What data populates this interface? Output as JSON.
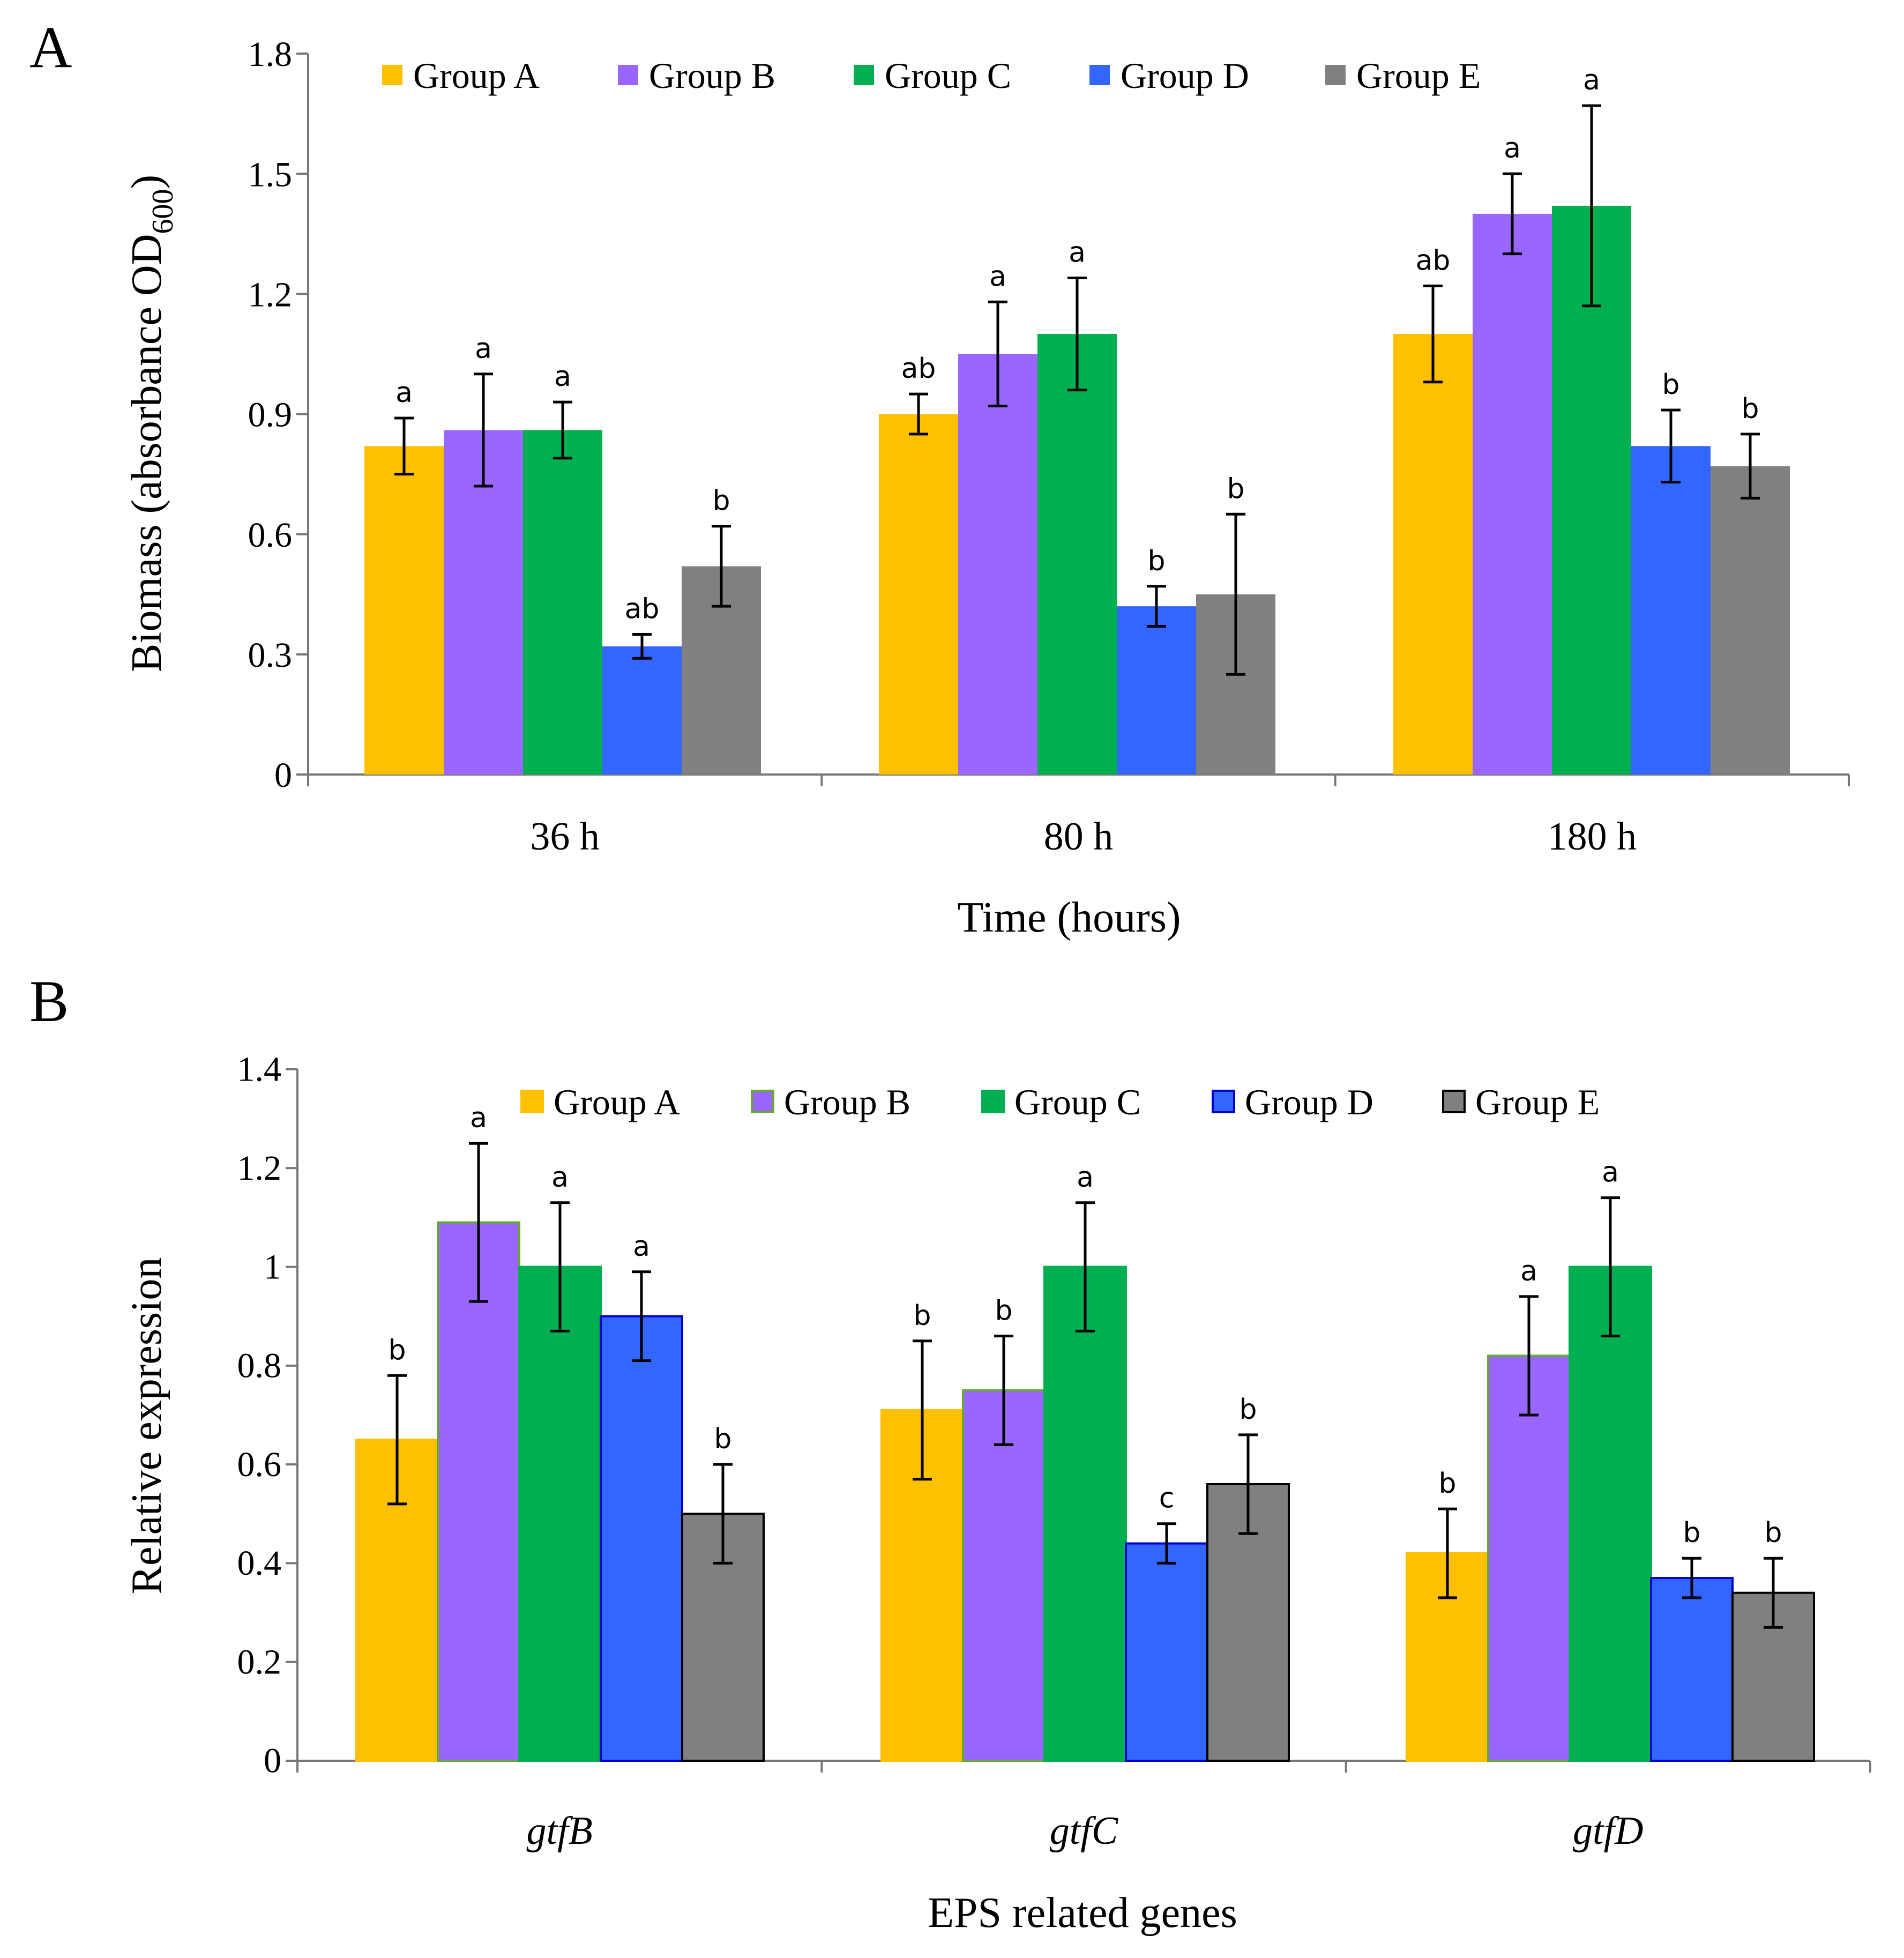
{
  "chart_data": [
    {
      "panel": "A",
      "type": "bar",
      "title": "",
      "xlabel": "Time (hours)",
      "ylabel": "Biomass (absorbance OD",
      "ylabel_subscript": "600",
      "ylabel_close": ")",
      "ylim": [
        0,
        1.8
      ],
      "yticks": [
        "0",
        "0.3",
        "0.6",
        "0.9",
        "1.2",
        "1.5",
        "1.8"
      ],
      "categories": [
        "36 h",
        "80 h",
        "180 h"
      ],
      "legend": "top",
      "series": [
        {
          "name": "Group A",
          "color": "#ffc000",
          "values": [
            0.82,
            0.9,
            1.1
          ],
          "errors": [
            0.07,
            0.05,
            0.12
          ],
          "labels": [
            "a",
            "ab",
            "ab"
          ]
        },
        {
          "name": "Group B",
          "color": "#9966ff",
          "values": [
            0.86,
            1.05,
            1.4
          ],
          "errors": [
            0.14,
            0.13,
            0.1
          ],
          "labels": [
            "a",
            "a",
            "a"
          ]
        },
        {
          "name": "Group C",
          "color": "#00b050",
          "values": [
            0.86,
            1.1,
            1.42
          ],
          "errors": [
            0.07,
            0.14,
            0.25
          ],
          "labels": [
            "a",
            "a",
            "a"
          ]
        },
        {
          "name": "Group D",
          "color": "#3366ff",
          "values": [
            0.32,
            0.42,
            0.82
          ],
          "errors": [
            0.03,
            0.05,
            0.09
          ],
          "labels": [
            "ab",
            "b",
            "b"
          ]
        },
        {
          "name": "Group E",
          "color": "#808080",
          "values": [
            0.52,
            0.45,
            0.77
          ],
          "errors": [
            0.1,
            0.2,
            0.08
          ],
          "labels": [
            "b",
            "b",
            "b"
          ]
        }
      ]
    },
    {
      "panel": "B",
      "type": "bar",
      "title": "",
      "xlabel": "EPS related genes",
      "ylabel": "Relative expression",
      "ylim": [
        0,
        1.4
      ],
      "yticks": [
        "0",
        "0.2",
        "0.4",
        "0.6",
        "0.8",
        "1",
        "1.2",
        "1.4"
      ],
      "categories": [
        "gtfB",
        "gtfC",
        "gtfD"
      ],
      "legend": "top",
      "series": [
        {
          "name": "Group A",
          "color": "#ffc000",
          "border": "#ffc000",
          "values": [
            0.65,
            0.71,
            0.42
          ],
          "errors": [
            0.13,
            0.14,
            0.09
          ],
          "labels": [
            "b",
            "b",
            "b"
          ]
        },
        {
          "name": "Group B",
          "color": "#9966ff",
          "border": "#66aa33",
          "values": [
            1.09,
            0.75,
            0.82
          ],
          "errors": [
            0.16,
            0.11,
            0.12
          ],
          "labels": [
            "a",
            "b",
            "a"
          ]
        },
        {
          "name": "Group C",
          "color": "#00b050",
          "border": "#00b050",
          "values": [
            1.0,
            1.0,
            1.0
          ],
          "errors": [
            0.13,
            0.13,
            0.14
          ],
          "labels": [
            "a",
            "a",
            "a"
          ]
        },
        {
          "name": "Group D",
          "color": "#3366ff",
          "border": "#0000cc",
          "values": [
            0.9,
            0.44,
            0.37
          ],
          "errors": [
            0.09,
            0.04,
            0.04
          ],
          "labels": [
            "a",
            "c",
            "b"
          ]
        },
        {
          "name": "Group E",
          "color": "#808080",
          "border": "#000000",
          "values": [
            0.5,
            0.56,
            0.34
          ],
          "errors": [
            0.1,
            0.1,
            0.07
          ],
          "labels": [
            "b",
            "b",
            "b"
          ]
        }
      ]
    }
  ]
}
